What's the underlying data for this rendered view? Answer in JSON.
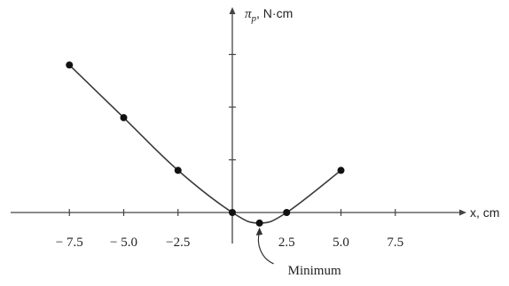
{
  "chart_data": {
    "type": "line",
    "ylabel_symbol": "π",
    "ylabel_sub": "p",
    "ylabel_unit": ", N·cm",
    "xlabel": "x, cm",
    "x_ticks": [
      -7.5,
      -5.0,
      -2.5,
      2.5,
      5.0,
      7.5
    ],
    "x_tick_labels": [
      "− 7.5",
      "− 5.0",
      "−2.5",
      "2.5",
      "5.0",
      "7.5"
    ],
    "y_ticks": [
      1,
      2,
      3
    ],
    "xlim": [
      -10.5,
      10.5
    ],
    "ylim": [
      -0.7,
      3.7
    ],
    "series": [
      {
        "x": [
          -7.5,
          -5.0,
          -2.5,
          0.0,
          1.25,
          2.5,
          5.0
        ],
        "y": [
          2.8,
          1.8,
          0.8,
          0.0,
          -0.2,
          0.0,
          0.8
        ]
      }
    ],
    "annotation": {
      "text": "Minimum",
      "x": 1.25,
      "y": -0.2
    },
    "colors": {
      "line": "#3a3a3a",
      "axis": "#444444",
      "text": "#222222"
    }
  }
}
